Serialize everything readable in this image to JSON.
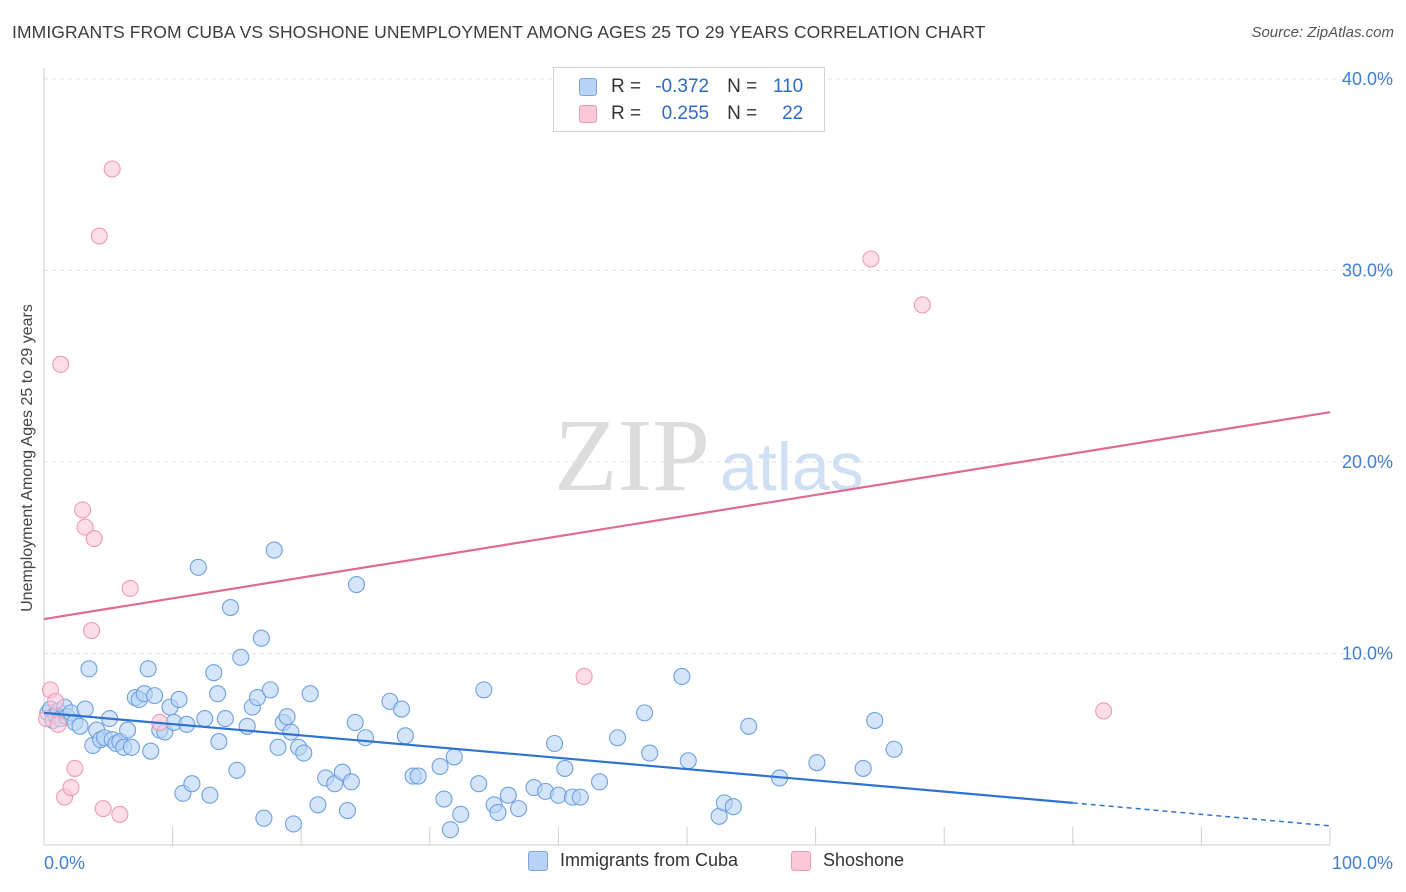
{
  "title": "IMMIGRANTS FROM CUBA VS SHOSHONE UNEMPLOYMENT AMONG AGES 25 TO 29 YEARS CORRELATION CHART",
  "source": "Source: ZipAtlas.com",
  "watermark": {
    "zip": "ZIP",
    "atlas": "atlas"
  },
  "legend": {
    "rows": [
      {
        "r_label": "R =",
        "r_value": "-0.372",
        "n_label": "N =",
        "n_value": "110",
        "color": "#b8d3f5"
      },
      {
        "r_label": "R =",
        "r_value": "0.255",
        "n_label": "N =",
        "n_value": "22",
        "color": "#fbc8d8"
      }
    ]
  },
  "bottom_legend": [
    "Immigrants from Cuba",
    "Shoshone"
  ],
  "colors": {
    "blue": "#6fa0e0",
    "blue_fill": "#b8d3f5",
    "blue_line": "#2f73d0",
    "pink": "#ee9ab5",
    "pink_fill": "#fbc8d8",
    "pink_line": "#e06a94",
    "axis_text": "#3f7fd4"
  },
  "chart_data": {
    "type": "scatter",
    "title": "IMMIGRANTS FROM CUBA VS SHOSHONE UNEMPLOYMENT AMONG AGES 25 TO 29 YEARS CORRELATION CHART",
    "xlabel": "",
    "ylabel": "Unemployment Among Ages 25 to 29 years",
    "xlim": [
      0,
      100
    ],
    "ylim": [
      0,
      40
    ],
    "x_tick_labels": [
      "0.0%",
      "100.0%"
    ],
    "y_tick_labels": [
      "10.0%",
      "20.0%",
      "30.0%",
      "40.0%"
    ],
    "y_ticks": [
      10,
      20,
      30,
      40
    ],
    "grid": true,
    "series": [
      {
        "name": "Immigrants from Cuba",
        "r": -0.372,
        "n": 110,
        "trend": {
          "x0": 0,
          "y0": 6.9,
          "x1": 80,
          "y1": 2.2,
          "dash_to_x": 100,
          "dash_to_y": 1.0
        },
        "points": [
          [
            0.3,
            6.9
          ],
          [
            0.5,
            7.1
          ],
          [
            0.7,
            6.5
          ],
          [
            0.9,
            6.8
          ],
          [
            1.1,
            7.0
          ],
          [
            1.3,
            6.6
          ],
          [
            1.6,
            7.2
          ],
          [
            1.8,
            6.7
          ],
          [
            2.1,
            6.9
          ],
          [
            2.4,
            6.4
          ],
          [
            2.8,
            6.2
          ],
          [
            3.2,
            7.1
          ],
          [
            3.5,
            9.2
          ],
          [
            3.8,
            5.2
          ],
          [
            4.1,
            6.0
          ],
          [
            4.4,
            5.5
          ],
          [
            4.7,
            5.6
          ],
          [
            5.1,
            6.6
          ],
          [
            5.3,
            5.5
          ],
          [
            5.6,
            5.3
          ],
          [
            5.9,
            5.4
          ],
          [
            6.2,
            5.1
          ],
          [
            6.5,
            6.0
          ],
          [
            6.8,
            5.1
          ],
          [
            7.1,
            7.7
          ],
          [
            7.4,
            7.6
          ],
          [
            7.8,
            7.9
          ],
          [
            8.1,
            9.2
          ],
          [
            8.3,
            4.9
          ],
          [
            8.6,
            7.8
          ],
          [
            9.0,
            6.0
          ],
          [
            9.4,
            5.9
          ],
          [
            9.8,
            7.2
          ],
          [
            10.1,
            6.4
          ],
          [
            10.5,
            7.6
          ],
          [
            10.8,
            2.7
          ],
          [
            11.1,
            6.3
          ],
          [
            11.5,
            3.2
          ],
          [
            12.0,
            14.5
          ],
          [
            12.5,
            6.6
          ],
          [
            12.9,
            2.6
          ],
          [
            13.2,
            9.0
          ],
          [
            13.5,
            7.9
          ],
          [
            13.6,
            5.4
          ],
          [
            14.1,
            6.6
          ],
          [
            14.5,
            12.4
          ],
          [
            15.0,
            3.9
          ],
          [
            15.3,
            9.8
          ],
          [
            15.8,
            6.2
          ],
          [
            16.2,
            7.2
          ],
          [
            16.6,
            7.7
          ],
          [
            16.9,
            10.8
          ],
          [
            17.1,
            1.4
          ],
          [
            17.6,
            8.1
          ],
          [
            17.9,
            15.4
          ],
          [
            18.2,
            5.1
          ],
          [
            18.6,
            6.4
          ],
          [
            18.9,
            6.7
          ],
          [
            19.2,
            5.9
          ],
          [
            19.4,
            1.1
          ],
          [
            19.8,
            5.1
          ],
          [
            20.2,
            4.8
          ],
          [
            20.7,
            7.9
          ],
          [
            21.3,
            2.1
          ],
          [
            21.9,
            3.5
          ],
          [
            22.6,
            3.2
          ],
          [
            23.2,
            3.8
          ],
          [
            23.6,
            1.8
          ],
          [
            23.9,
            3.3
          ],
          [
            24.2,
            6.4
          ],
          [
            24.3,
            13.6
          ],
          [
            25.0,
            5.6
          ],
          [
            26.9,
            7.5
          ],
          [
            27.8,
            7.1
          ],
          [
            28.1,
            5.7
          ],
          [
            28.7,
            3.6
          ],
          [
            29.1,
            3.6
          ],
          [
            30.8,
            4.1
          ],
          [
            31.1,
            2.4
          ],
          [
            31.6,
            0.8
          ],
          [
            31.9,
            4.6
          ],
          [
            32.4,
            1.6
          ],
          [
            33.8,
            3.2
          ],
          [
            34.2,
            8.1
          ],
          [
            35.0,
            2.1
          ],
          [
            35.3,
            1.7
          ],
          [
            36.1,
            2.6
          ],
          [
            36.9,
            1.9
          ],
          [
            38.1,
            3.0
          ],
          [
            39.0,
            2.8
          ],
          [
            39.7,
            5.3
          ],
          [
            40.0,
            2.6
          ],
          [
            40.5,
            4.0
          ],
          [
            41.1,
            2.5
          ],
          [
            41.7,
            2.5
          ],
          [
            43.2,
            3.3
          ],
          [
            44.6,
            5.6
          ],
          [
            46.7,
            6.9
          ],
          [
            47.1,
            4.8
          ],
          [
            49.6,
            8.8
          ],
          [
            50.1,
            4.4
          ],
          [
            52.5,
            1.5
          ],
          [
            52.9,
            2.2
          ],
          [
            53.6,
            2.0
          ],
          [
            54.8,
            6.2
          ],
          [
            57.2,
            3.5
          ],
          [
            60.1,
            4.3
          ],
          [
            63.7,
            4.0
          ],
          [
            64.6,
            6.5
          ],
          [
            66.1,
            5.0
          ]
        ]
      },
      {
        "name": "Shoshone",
        "r": 0.255,
        "n": 22,
        "trend": {
          "x0": 0,
          "y0": 11.8,
          "x1": 100,
          "y1": 22.6
        },
        "points": [
          [
            0.2,
            6.6
          ],
          [
            0.5,
            8.1
          ],
          [
            0.9,
            7.5
          ],
          [
            1.1,
            6.3
          ],
          [
            1.3,
            25.1
          ],
          [
            1.6,
            2.5
          ],
          [
            2.1,
            3.0
          ],
          [
            2.4,
            4.0
          ],
          [
            3.0,
            17.5
          ],
          [
            3.2,
            16.6
          ],
          [
            3.7,
            11.2
          ],
          [
            3.9,
            16.0
          ],
          [
            4.3,
            31.8
          ],
          [
            4.6,
            1.9
          ],
          [
            5.3,
            35.3
          ],
          [
            5.9,
            1.6
          ],
          [
            6.7,
            13.4
          ],
          [
            9.0,
            6.4
          ],
          [
            42.0,
            8.8
          ],
          [
            64.3,
            30.6
          ],
          [
            68.3,
            28.2
          ],
          [
            82.4,
            7.0
          ]
        ]
      }
    ]
  }
}
